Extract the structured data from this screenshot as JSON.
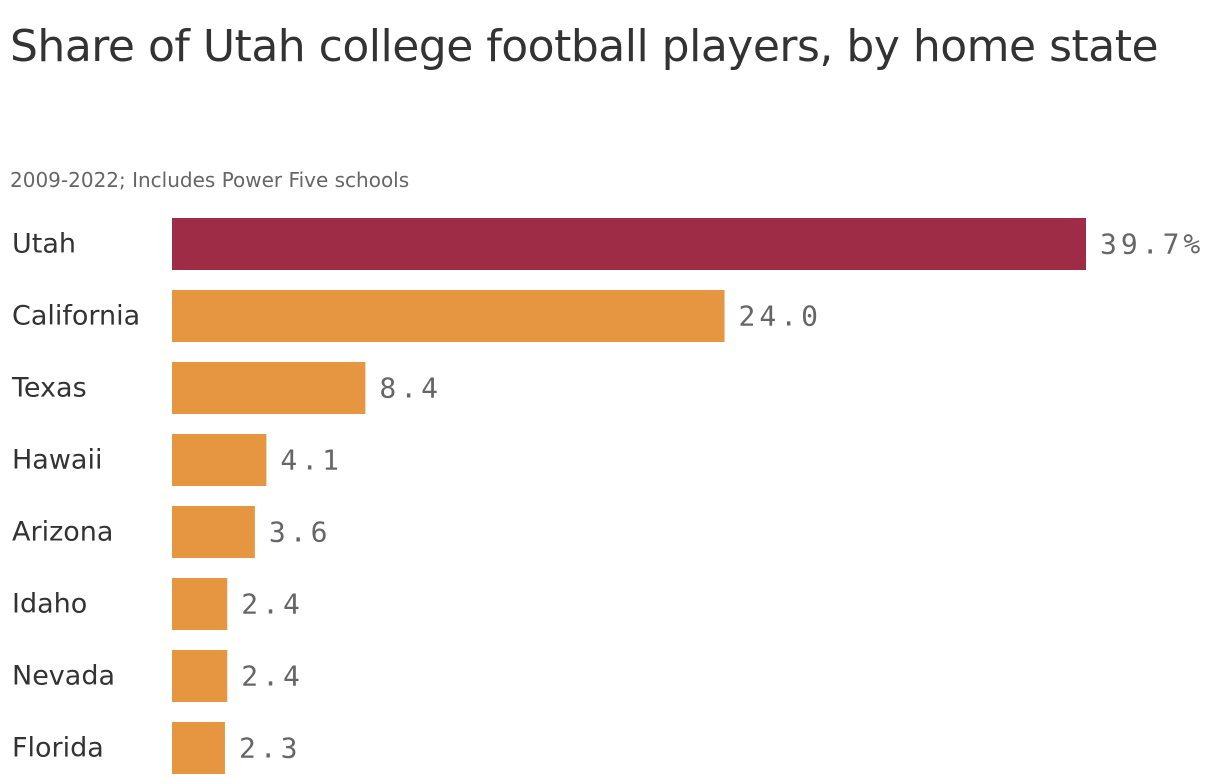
{
  "title": "Share of Utah college football players, by home state",
  "subtitle": "2009-2022; Includes Power Five schools",
  "colors": {
    "highlight": "#9e2c47",
    "default": "#e69541"
  },
  "chart_data": {
    "type": "bar",
    "orientation": "horizontal",
    "title": "Share of Utah college football players, by home state",
    "subtitle": "2009-2022; Includes Power Five schools",
    "categories": [
      "Utah",
      "California",
      "Texas",
      "Hawaii",
      "Arizona",
      "Idaho",
      "Nevada",
      "Florida"
    ],
    "values": [
      39.7,
      24.0,
      8.4,
      4.1,
      3.6,
      2.4,
      2.4,
      2.3
    ],
    "value_labels": [
      "39.7%",
      "24.0",
      "8.4",
      "4.1",
      "3.6",
      "2.4",
      "2.4",
      "2.3"
    ],
    "highlight_category": "Utah",
    "xlabel": "",
    "ylabel": "",
    "xlim": [
      0,
      39.7
    ],
    "grid": false,
    "legend": "none"
  }
}
